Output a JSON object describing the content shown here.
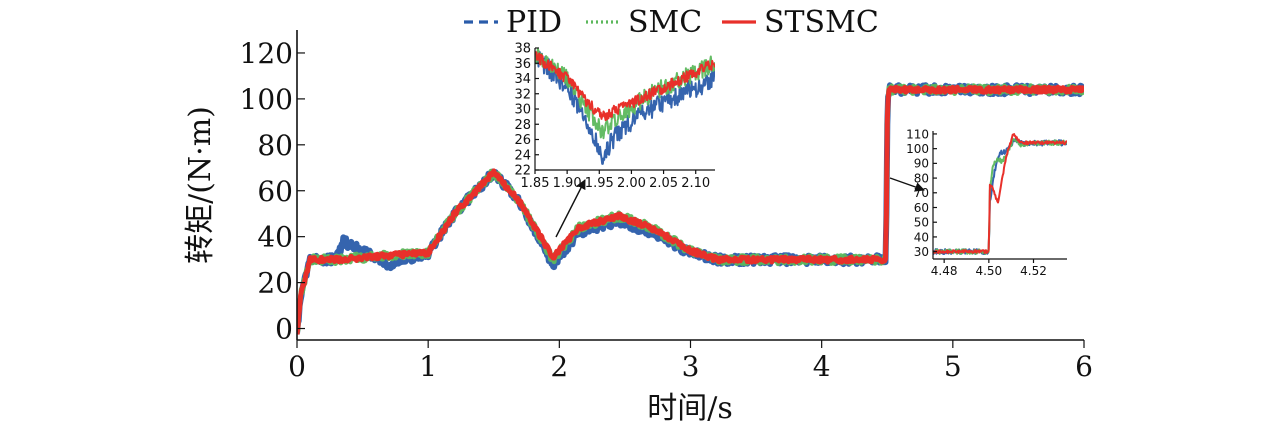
{
  "chart_data": [
    {
      "type": "line",
      "xlabel": "时间/s",
      "ylabel": "转矩/(N·m)",
      "xlim": [
        0,
        6
      ],
      "ylim": [
        -5,
        130
      ],
      "x_ticks": [
        "0",
        "1",
        "2",
        "3",
        "4",
        "5",
        "6"
      ],
      "y_ticks": [
        "0",
        "20",
        "40",
        "60",
        "80",
        "100",
        "120"
      ],
      "grid": false,
      "legend_position": "top-center",
      "series": [
        {
          "name": "PID",
          "color": "#2a5caa",
          "style": "dashed",
          "x": [
            0,
            0.03,
            0.1,
            0.3,
            0.35,
            0.7,
            1.0,
            1.2,
            1.5,
            1.7,
            1.95,
            2.15,
            2.45,
            2.7,
            3.0,
            3.2,
            4.0,
            4.49,
            4.5,
            4.51,
            5.0,
            6.0
          ],
          "values": [
            -3,
            15,
            30,
            30,
            38,
            28,
            33,
            50,
            68,
            55,
            28,
            42,
            47,
            42,
            33,
            30,
            30,
            30,
            90,
            104,
            104,
            104
          ]
        },
        {
          "name": "SMC",
          "color": "#5cb85c",
          "style": "dotted",
          "x": [
            0,
            0.03,
            0.1,
            0.3,
            1.0,
            1.2,
            1.5,
            1.7,
            1.95,
            2.15,
            2.45,
            2.7,
            3.0,
            3.2,
            4.0,
            4.49,
            4.5,
            4.51,
            5.0,
            6.0
          ],
          "values": [
            -3,
            15,
            30,
            30,
            33,
            50,
            68,
            55,
            30,
            44,
            49,
            44,
            34,
            30,
            30,
            30,
            90,
            104,
            104,
            104
          ]
        },
        {
          "name": "STSMC",
          "color": "#e8302a",
          "style": "solid",
          "x": [
            0,
            0.03,
            0.1,
            0.3,
            1.0,
            1.2,
            1.5,
            1.7,
            1.95,
            2.15,
            2.45,
            2.7,
            3.0,
            3.2,
            4.0,
            4.49,
            4.5,
            4.51,
            5.0,
            6.0
          ],
          "values": [
            -3,
            15,
            30,
            30,
            33,
            50,
            68,
            55,
            31,
            44,
            49,
            44,
            34,
            30,
            30,
            30,
            90,
            104,
            104,
            104
          ]
        }
      ]
    },
    {
      "type": "line",
      "xlim": [
        1.85,
        2.13
      ],
      "ylim": [
        22,
        38
      ],
      "x_ticks": [
        "1.85",
        "1.90",
        "1.95",
        "2.00",
        "2.05",
        "2.10"
      ],
      "y_ticks": [
        "22",
        "24",
        "26",
        "28",
        "30",
        "32",
        "34",
        "36",
        "38"
      ],
      "series": [
        {
          "name": "PID",
          "x": [
            1.85,
            1.9,
            1.93,
            1.955,
            1.98,
            2.03,
            2.08,
            2.13
          ],
          "values": [
            37,
            33,
            28,
            24,
            27,
            30,
            32,
            34
          ]
        },
        {
          "name": "SMC",
          "x": [
            1.85,
            1.9,
            1.93,
            1.955,
            1.98,
            2.03,
            2.08,
            2.13
          ],
          "values": [
            37,
            34,
            30,
            27,
            29,
            32,
            34,
            36
          ]
        },
        {
          "name": "STSMC",
          "x": [
            1.85,
            1.9,
            1.93,
            1.955,
            1.98,
            2.03,
            2.08,
            2.13
          ],
          "values": [
            37,
            34,
            31,
            29,
            30,
            32,
            34,
            36
          ]
        }
      ]
    },
    {
      "type": "line",
      "xlim": [
        4.475,
        4.535
      ],
      "ylim": [
        25,
        112
      ],
      "x_ticks": [
        "4.48",
        "4.50",
        "4.52"
      ],
      "y_ticks": [
        "30",
        "40",
        "50",
        "60",
        "70",
        "80",
        "90",
        "100",
        "110"
      ],
      "series": [
        {
          "name": "PID",
          "x": [
            4.475,
            4.5,
            4.5005,
            4.503,
            4.505,
            4.507,
            4.509,
            4.512,
            4.515,
            4.525,
            4.532
          ],
          "values": [
            30,
            30,
            64,
            88,
            97,
            98,
            100,
            106,
            103,
            104,
            104
          ]
        },
        {
          "name": "SMC",
          "x": [
            4.475,
            4.5,
            4.5005,
            4.502,
            4.504,
            4.506,
            4.508,
            4.511,
            4.514,
            4.525,
            4.532
          ],
          "values": [
            30,
            30,
            72,
            90,
            93,
            91,
            97,
            106,
            103,
            104,
            104
          ]
        },
        {
          "name": "STSMC",
          "x": [
            4.475,
            4.5,
            4.5005,
            4.502,
            4.504,
            4.506,
            4.508,
            4.511,
            4.514,
            4.525,
            4.532
          ],
          "values": [
            30,
            30,
            76,
            72,
            63,
            80,
            96,
            110,
            104,
            104,
            104
          ]
        }
      ]
    }
  ]
}
